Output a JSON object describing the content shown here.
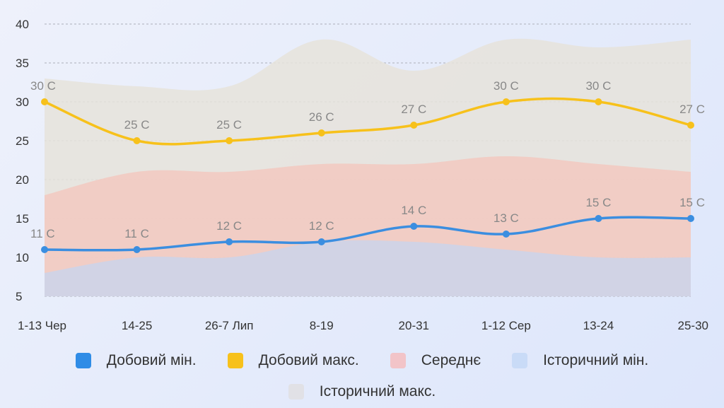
{
  "chart_data": {
    "type": "area",
    "categories": [
      "1-13 Чер",
      "14-25",
      "26-7 Лип",
      "8-19",
      "20-31",
      "1-12 Сер",
      "13-24",
      "25-30"
    ],
    "ylim": [
      5,
      40
    ],
    "yticks": [
      5,
      10,
      15,
      20,
      25,
      30,
      35,
      40
    ],
    "grid": true,
    "series": [
      {
        "name": "Історичний макс.",
        "kind": "area",
        "color": "#e6e3da",
        "values": [
          33,
          32,
          32,
          38,
          34,
          38,
          37,
          38
        ]
      },
      {
        "name": "Середнє",
        "kind": "area",
        "color": "#f2c9bf",
        "values": [
          18,
          21,
          21,
          22,
          22,
          23,
          22,
          21
        ]
      },
      {
        "name": "Історичний мін.",
        "kind": "area",
        "color": "#cbd3ea",
        "values": [
          8,
          10,
          10,
          12,
          12,
          11,
          10,
          10
        ]
      },
      {
        "name": "Добовий макс.",
        "kind": "line",
        "color": "#f7c11b",
        "values": [
          30,
          25,
          25,
          26,
          27,
          30,
          30,
          27
        ],
        "labels": [
          "30 C",
          "25 C",
          "25 C",
          "26 C",
          "27 C",
          "30 C",
          "30 C",
          "27 C"
        ]
      },
      {
        "name": "Добовий мін.",
        "kind": "line",
        "color": "#3b8ee0",
        "values": [
          11,
          11,
          12,
          12,
          14,
          13,
          15,
          15
        ],
        "labels": [
          "11 C",
          "11 C",
          "12 C",
          "12 C",
          "14 C",
          "13 C",
          "15 C",
          "15 C"
        ]
      }
    ],
    "legend": [
      {
        "label": "Добовий мін.",
        "color": "#2f8ce6"
      },
      {
        "label": "Добовий макс.",
        "color": "#f7c11b"
      },
      {
        "label": "Середнє",
        "color": "#f2c4c8"
      },
      {
        "label": "Історичний мін.",
        "color": "#c9dbf7"
      },
      {
        "label": "Історичний макс.",
        "color": "#e1e1e6"
      }
    ]
  }
}
